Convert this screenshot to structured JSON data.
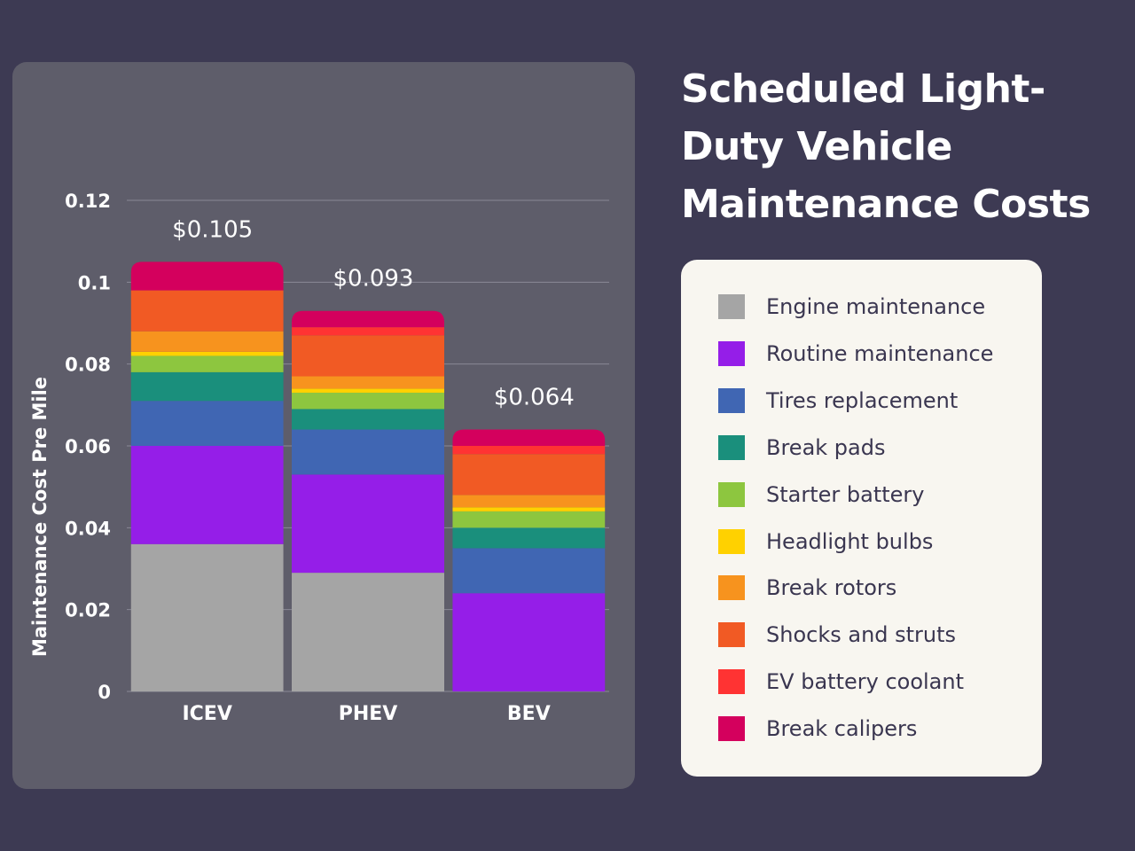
{
  "title": "Scheduled Light-Duty Vehicle Maintenance Costs",
  "chart_data": {
    "type": "bar",
    "stacked": true,
    "title": "Scheduled Light-Duty Vehicle Maintenance Costs",
    "xlabel": "",
    "ylabel": "Maintenance Cost Pre Mile",
    "ylim": [
      0,
      0.12
    ],
    "yticks": [
      0,
      0.02,
      0.04,
      0.06,
      0.08,
      0.1,
      0.12
    ],
    "ytick_labels": [
      "0",
      "0.02",
      "0.04",
      "0.06",
      "0.08",
      "0.1",
      "0.12"
    ],
    "grid": true,
    "legend_position": "right",
    "categories": [
      "ICEV",
      "PHEV",
      "BEV"
    ],
    "totals": [
      0.105,
      0.093,
      0.064
    ],
    "total_labels": [
      "$0.105",
      "$0.093",
      "$0.064"
    ],
    "series": [
      {
        "name": "Engine maintenance",
        "color": "#a5a5a5",
        "values": [
          0.036,
          0.029,
          0.0
        ]
      },
      {
        "name": "Routine maintenance",
        "color": "#951ee8",
        "values": [
          0.024,
          0.024,
          0.024
        ]
      },
      {
        "name": "Tires replacement",
        "color": "#4066b3",
        "values": [
          0.011,
          0.011,
          0.011
        ]
      },
      {
        "name": "Break pads",
        "color": "#1a8f7c",
        "values": [
          0.007,
          0.005,
          0.005
        ]
      },
      {
        "name": "Starter battery",
        "color": "#8dc63f",
        "values": [
          0.004,
          0.004,
          0.004
        ]
      },
      {
        "name": "Headlight bulbs",
        "color": "#ffd100",
        "values": [
          0.001,
          0.001,
          0.001
        ]
      },
      {
        "name": "Break rotors",
        "color": "#f7931e",
        "values": [
          0.005,
          0.003,
          0.003
        ]
      },
      {
        "name": "Shocks and struts",
        "color": "#f15a24",
        "values": [
          0.01,
          0.01,
          0.01
        ]
      },
      {
        "name": "EV battery coolant",
        "color": "#ff3333",
        "values": [
          0.0,
          0.002,
          0.002
        ]
      },
      {
        "name": "Break calipers",
        "color": "#d4005d",
        "values": [
          0.007,
          0.004,
          0.004
        ]
      }
    ]
  }
}
